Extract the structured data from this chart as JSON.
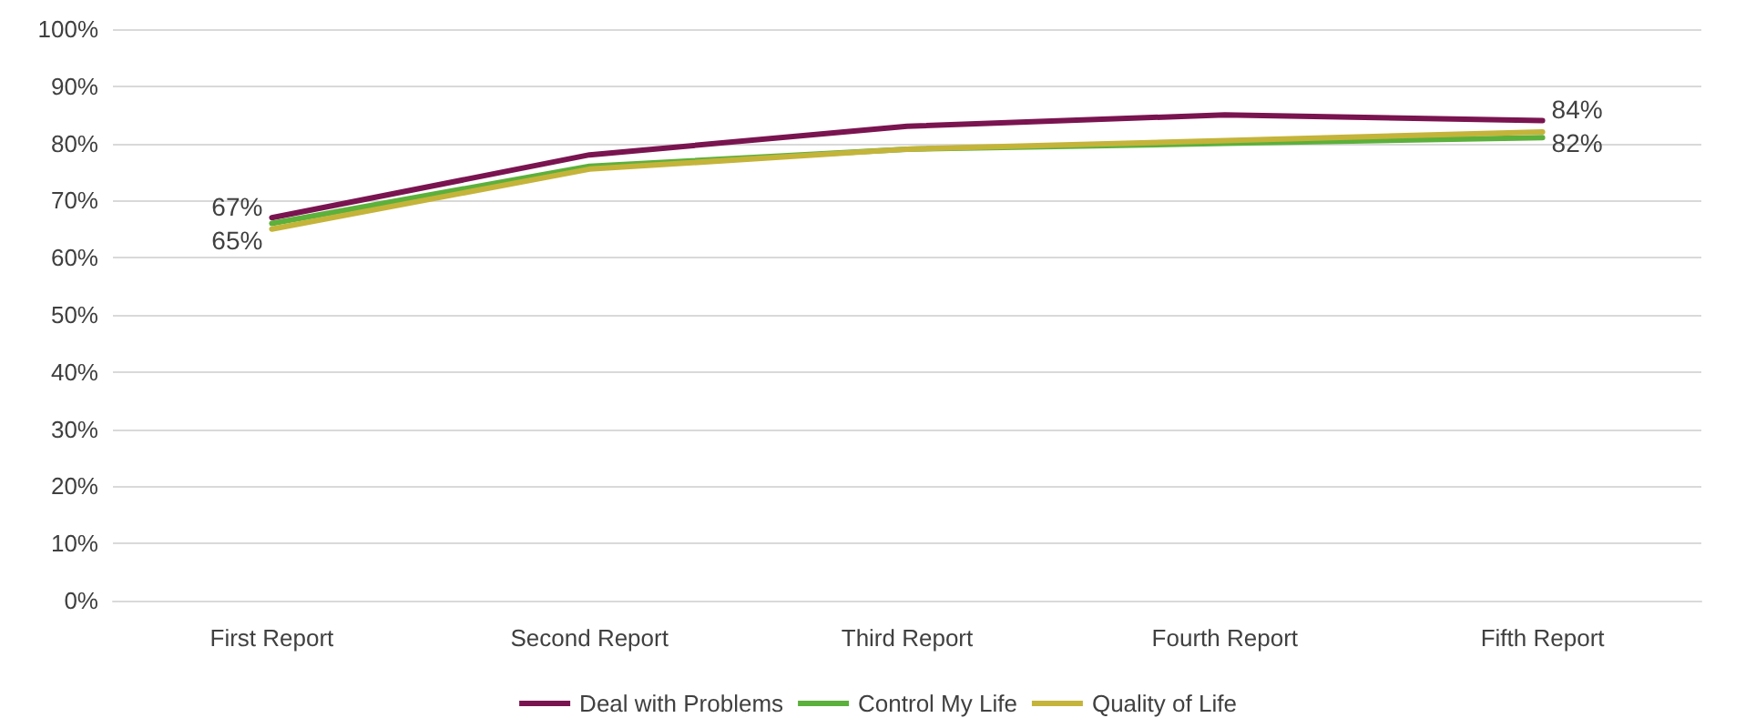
{
  "chart_data": {
    "type": "line",
    "categories": [
      "First Report",
      "Second Report",
      "Third Report",
      "Fourth Report",
      "Fifth Report"
    ],
    "series": [
      {
        "name": "Deal with Problems",
        "color": "#7a1450",
        "values": [
          67,
          78,
          83,
          85,
          84
        ],
        "value_labels": [
          "67%",
          null,
          null,
          null,
          "84%"
        ]
      },
      {
        "name": "Control My Life",
        "color": "#5cb03c",
        "values": [
          66,
          76,
          79,
          80,
          81
        ],
        "value_labels": [
          null,
          null,
          null,
          null,
          null
        ]
      },
      {
        "name": "Quality of Life",
        "color": "#c4b43a",
        "values": [
          65,
          75.5,
          79,
          80.5,
          82
        ],
        "value_labels": [
          "65%",
          null,
          null,
          null,
          "82%"
        ]
      }
    ],
    "ylim": [
      0,
      100
    ],
    "yticks": [
      {
        "value": 0,
        "label": "0%"
      },
      {
        "value": 10,
        "label": "10%"
      },
      {
        "value": 20,
        "label": "20%"
      },
      {
        "value": 30,
        "label": "30%"
      },
      {
        "value": 40,
        "label": "40%"
      },
      {
        "value": 50,
        "label": "50%"
      },
      {
        "value": 60,
        "label": "60%"
      },
      {
        "value": 70,
        "label": "70%"
      },
      {
        "value": 80,
        "label": "80%"
      },
      {
        "value": 90,
        "label": "90%"
      },
      {
        "value": 100,
        "label": "100%"
      }
    ],
    "grid": "y",
    "legend": "bottom",
    "marker": "none",
    "line_style": "solid"
  }
}
